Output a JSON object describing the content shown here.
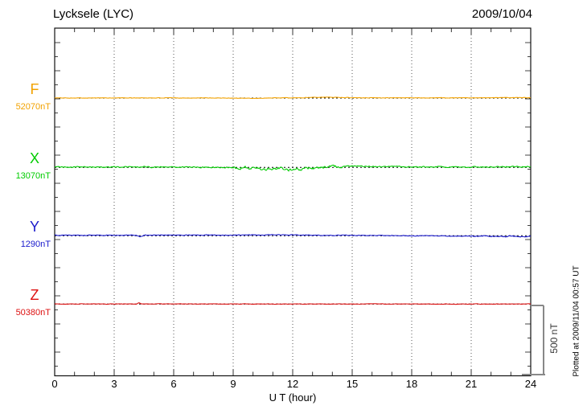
{
  "header": {
    "title": "Lycksele (LYC)",
    "date": "2009/10/04"
  },
  "xaxis": {
    "label": "U T (hour)",
    "ticks": [
      "0",
      "3",
      "6",
      "9",
      "12",
      "15",
      "18",
      "21",
      "24"
    ]
  },
  "scalebar": {
    "label": "500 nT"
  },
  "plotted_note": "Plotted at 2009/11/04 00:57 UT",
  "chart_data": {
    "type": "line",
    "title": "Lycksele (LYC) magnetogram 2009/10/04",
    "xlabel": "U T (hour)",
    "x_range_hours": [
      0,
      24
    ],
    "x_tick_step_hours": 3,
    "grid": "vertical-dotted",
    "amplitude_scalebar_nT": 500,
    "edge_tick_interval_nT": 100,
    "series": [
      {
        "label": "F",
        "baseline_label": "52070nT",
        "baseline_nT": 52070,
        "color": "#f2a200",
        "noise_amp_nT": 2,
        "keypoints_hour_offset_nT": [
          [
            0,
            1
          ],
          [
            6,
            1
          ],
          [
            9,
            0
          ],
          [
            10,
            -2
          ],
          [
            11,
            1
          ],
          [
            12.5,
            2
          ],
          [
            13,
            6
          ],
          [
            14,
            6
          ],
          [
            15,
            3
          ],
          [
            16,
            2
          ],
          [
            20,
            2
          ],
          [
            22,
            3
          ],
          [
            24,
            3
          ]
        ]
      },
      {
        "label": "X",
        "baseline_label": "13070nT",
        "baseline_nT": 13070,
        "color": "#00cc00",
        "noise_amp_nT": 5,
        "noise_windows": [
          {
            "from": 9,
            "to": 14.5,
            "factor": 2.3
          }
        ],
        "keypoints_hour_offset_nT": [
          [
            0,
            3
          ],
          [
            7,
            3
          ],
          [
            8.5,
            1
          ],
          [
            9.5,
            -2
          ],
          [
            10.3,
            -4
          ],
          [
            10.6,
            -16
          ],
          [
            10.9,
            -4
          ],
          [
            11.4,
            -9
          ],
          [
            11.9,
            -16
          ],
          [
            12.1,
            -8
          ],
          [
            12.5,
            -13
          ],
          [
            12.9,
            -5
          ],
          [
            13.4,
            -1
          ],
          [
            14,
            5
          ],
          [
            14.7,
            9
          ],
          [
            15.5,
            9
          ],
          [
            16.5,
            7
          ],
          [
            18,
            5
          ],
          [
            20,
            4
          ],
          [
            22,
            4
          ],
          [
            23.5,
            6
          ],
          [
            24,
            5
          ]
        ]
      },
      {
        "label": "Y",
        "baseline_label": "1290nT",
        "baseline_nT": 1290,
        "color": "#1a1acc",
        "noise_amp_nT": 3,
        "noise_windows": [
          {
            "from": 21,
            "to": 24,
            "factor": 1.8
          }
        ],
        "keypoints_hour_offset_nT": [
          [
            0,
            4
          ],
          [
            4.1,
            4
          ],
          [
            4.3,
            -8
          ],
          [
            4.5,
            4
          ],
          [
            6,
            5
          ],
          [
            8,
            5
          ],
          [
            10,
            6
          ],
          [
            12,
            6
          ],
          [
            13,
            5
          ],
          [
            14,
            4
          ],
          [
            15,
            3
          ],
          [
            16,
            2
          ],
          [
            17,
            1
          ],
          [
            18,
            0
          ],
          [
            19,
            -1
          ],
          [
            20,
            -2
          ],
          [
            21,
            -2
          ],
          [
            22,
            -3
          ],
          [
            22.5,
            -6
          ],
          [
            23,
            -3
          ],
          [
            23.5,
            -7
          ],
          [
            24,
            -6
          ]
        ]
      },
      {
        "label": "Z",
        "baseline_label": "50380nT",
        "baseline_nT": 50380,
        "color": "#dd1111",
        "noise_amp_nT": 2,
        "keypoints_hour_offset_nT": [
          [
            0,
            1
          ],
          [
            4.1,
            1
          ],
          [
            4.25,
            10
          ],
          [
            4.4,
            1
          ],
          [
            8,
            1
          ],
          [
            12,
            0
          ],
          [
            16,
            1
          ],
          [
            20,
            0
          ],
          [
            24,
            1
          ]
        ]
      }
    ]
  }
}
